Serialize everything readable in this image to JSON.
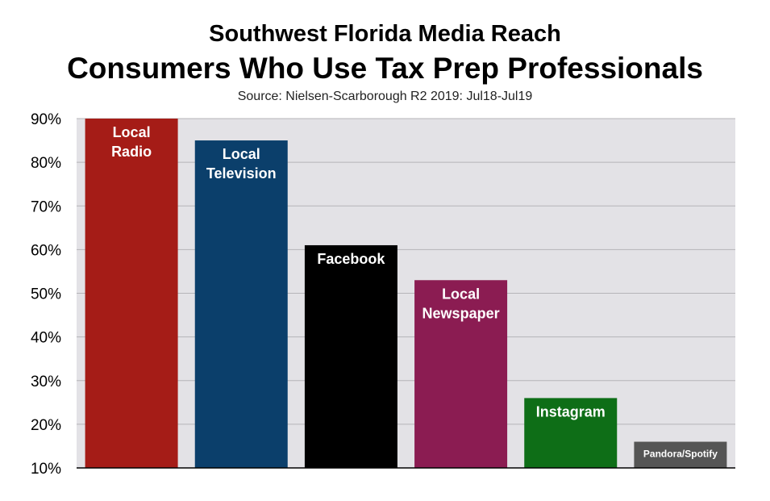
{
  "title": "Southwest Florida Media Reach",
  "subtitle": "Consumers Who Use Tax Prep Professionals",
  "source": "Source: Nielsen-Scarborough R2 2019: Jul18-Jul19",
  "chart_data": {
    "type": "bar",
    "categories": [
      "Local Radio",
      "Local Television",
      "Facebook",
      "Local Newspaper",
      "Instagram",
      "Pandora/Spotify"
    ],
    "bar_labels": [
      [
        "Local",
        "Radio"
      ],
      [
        "Local",
        "Television"
      ],
      [
        "Facebook"
      ],
      [
        "Local",
        "Newspaper"
      ],
      [
        "Instagram"
      ],
      [
        "Pandora/Spotify"
      ]
    ],
    "values": [
      90,
      85,
      61,
      53,
      26,
      16
    ],
    "colors": [
      "#a51c17",
      "#0b3f6b",
      "#000000",
      "#8b1c52",
      "#0e6e17",
      "#555555"
    ],
    "ylim": [
      10,
      90
    ],
    "yticks": [
      10,
      20,
      30,
      40,
      50,
      60,
      70,
      80,
      90
    ],
    "ytick_labels": [
      "10%",
      "20%",
      "30%",
      "40%",
      "50%",
      "60%",
      "70%",
      "80%",
      "90%"
    ],
    "grid": true,
    "plot_background": "#e3e2e6",
    "xlabel": "",
    "ylabel": ""
  }
}
